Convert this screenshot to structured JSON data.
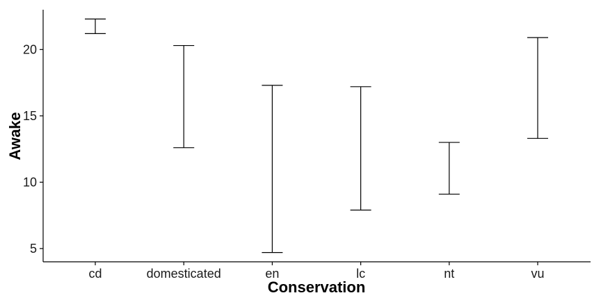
{
  "chart_data": {
    "type": "errorbar",
    "xlabel": "Conservation",
    "ylabel": "Awake",
    "categories": [
      "cd",
      "domesticated",
      "en",
      "lc",
      "nt",
      "vu"
    ],
    "lower": [
      21.2,
      12.6,
      4.7,
      7.9,
      9.1,
      13.3
    ],
    "upper": [
      22.3,
      20.3,
      17.3,
      17.2,
      13.0,
      20.9
    ],
    "ylim": [
      4.0,
      23.0
    ],
    "yticks": [
      5,
      10,
      15,
      20
    ],
    "grid": false,
    "legend": "none"
  }
}
